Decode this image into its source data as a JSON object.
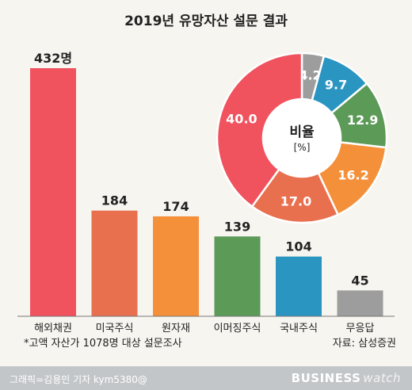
{
  "title": "2019년 유망자산 설문 결과",
  "chart_data": [
    {
      "type": "bar",
      "categories": [
        "해외채권",
        "미국주식",
        "원자재",
        "이머징주식",
        "국내주식",
        "무응답"
      ],
      "values": [
        432,
        184,
        174,
        139,
        104,
        45
      ],
      "value_labels": [
        "432명",
        "184",
        "174",
        "139",
        "104",
        "45"
      ],
      "colors": [
        "#f0525e",
        "#e8704f",
        "#f5903a",
        "#5c9a58",
        "#2a95c1",
        "#9d9d9d"
      ],
      "ylim": [
        0,
        432
      ],
      "grid": false
    },
    {
      "type": "pie",
      "donut": true,
      "center_label": "비율",
      "center_unit": "[%]",
      "labels": [
        "4.2",
        "9.7",
        "12.9",
        "16.2",
        "17.0",
        "40.0"
      ],
      "values": [
        4.2,
        9.7,
        12.9,
        16.2,
        17.0,
        40.0
      ],
      "colors": [
        "#9d9d9d",
        "#2a95c1",
        "#5c9a58",
        "#f5903a",
        "#e8704f",
        "#f0525e"
      ]
    }
  ],
  "footnote": "*고액 자산가 1078명 대상 설문조사",
  "source": "자료: 삼성증권",
  "credit": "그래픽=김용민 기자 kym5380@",
  "logo_main": "BUSINESS",
  "logo_sub": "watch"
}
